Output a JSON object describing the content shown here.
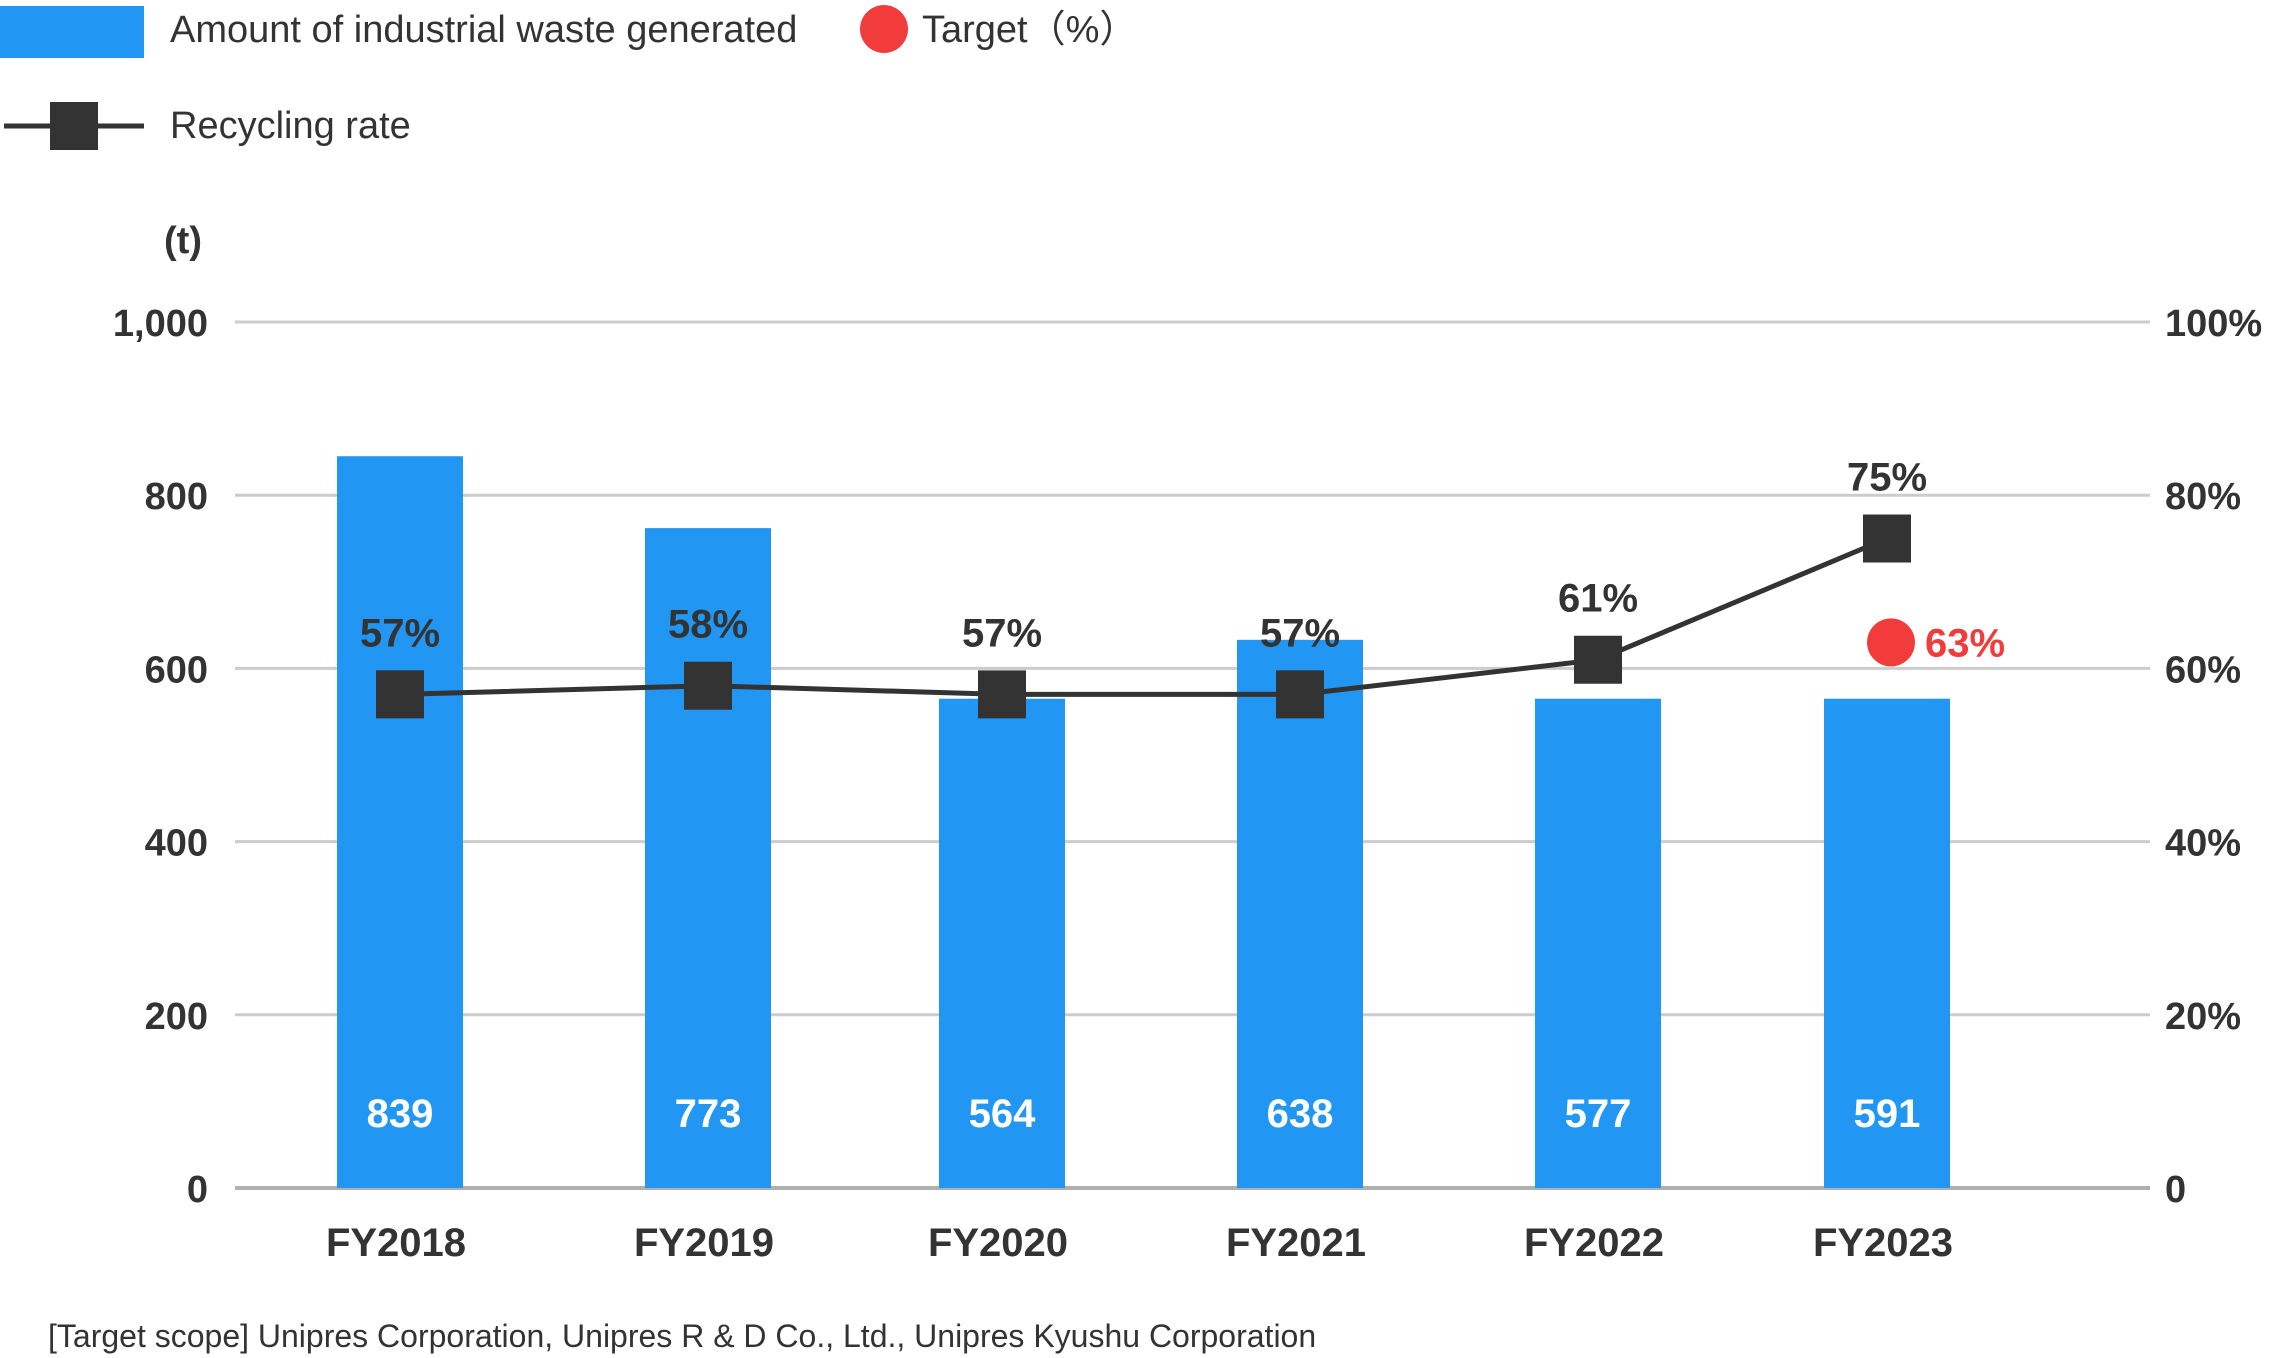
{
  "chart_data": {
    "type": "bar",
    "unit_label": "(t)",
    "categories": [
      "FY2018",
      "FY2019",
      "FY2020",
      "FY2021",
      "FY2022",
      "FY2023"
    ],
    "series": [
      {
        "name": "Amount of industrial waste generated",
        "kind": "bar",
        "axis": "left",
        "values": [
          839,
          773,
          564,
          638,
          577,
          591
        ],
        "labels": [
          "839",
          "773",
          "564",
          "638",
          "577",
          "591"
        ],
        "bar_tops": [
          845,
          762,
          565,
          633,
          565,
          565
        ],
        "color": "#2196f3"
      },
      {
        "name": "Recycling rate",
        "kind": "line",
        "axis": "right",
        "values": [
          57,
          58,
          57,
          57,
          61,
          75
        ],
        "labels": [
          "57%",
          "58%",
          "57%",
          "57%",
          "61%",
          "75%"
        ],
        "color": "#333333"
      },
      {
        "name": "Target（%）",
        "kind": "point",
        "axis": "right",
        "category": "FY2023",
        "value": 63,
        "label": "63%",
        "color": "#f23c3c"
      }
    ],
    "y_left": {
      "ylim": [
        0,
        1000
      ],
      "ticks": [
        "0",
        "200",
        "400",
        "600",
        "800",
        "1,000"
      ]
    },
    "y_right": {
      "ylim": [
        0,
        100
      ],
      "ticks": [
        "0",
        "20%",
        "40%",
        "60%",
        "80%",
        "100%"
      ]
    },
    "grid": true,
    "legend_position": "top-left"
  },
  "footnote": "[Target scope] Unipres Corporation, Unipres R & D Co., Ltd., Unipres Kyushu Corporation"
}
